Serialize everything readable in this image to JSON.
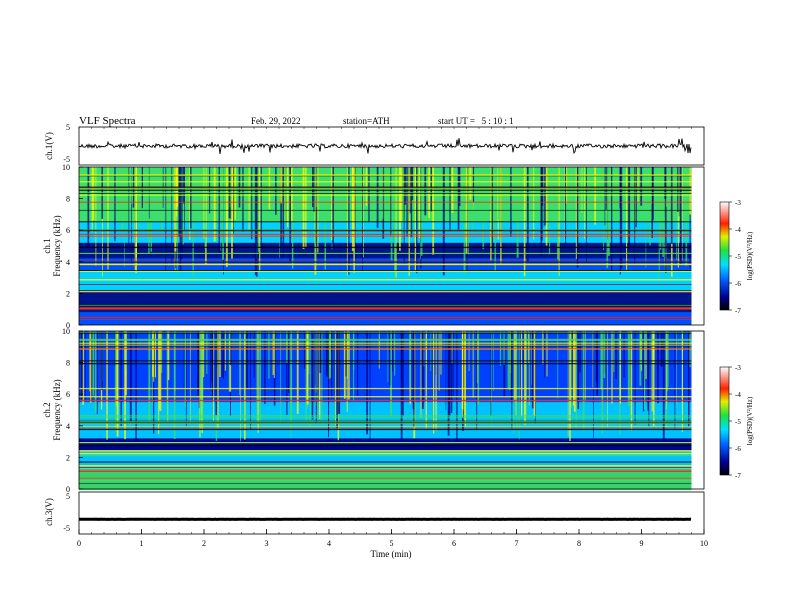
{
  "header": {
    "title": "VLF Spectra",
    "date": "Feb. 29, 2022",
    "station": "station=ATH",
    "start_ut": "start UT =   5 : 10 : 1"
  },
  "panels": {
    "ch1_wave": {
      "ylabel": "ch.1(V)",
      "ticks": [
        "5",
        "-5"
      ]
    },
    "ch1_spec": {
      "ylabel_ch": "ch.1",
      "ylabel": "Frequency (kHz)",
      "ticks": [
        "10",
        "8",
        "6",
        "4",
        "2",
        "0"
      ]
    },
    "ch2_spec": {
      "ylabel_ch": "ch.2",
      "ylabel": "Frequency (kHz)",
      "ticks": [
        "10",
        "8",
        "6",
        "4",
        "2",
        "0"
      ]
    },
    "ch3_wave": {
      "ylabel": "ch.3(V)",
      "ticks": [
        "5",
        "-5"
      ]
    }
  },
  "xaxis": {
    "label": "Time (min)",
    "ticks": [
      "0",
      "1",
      "2",
      "3",
      "4",
      "5",
      "6",
      "7",
      "8",
      "9",
      "10"
    ]
  },
  "colorbars": [
    {
      "label": "log(PSD)(V²/Hz)",
      "ticks": [
        "-3",
        "-4",
        "-5",
        "-6",
        "-7"
      ]
    },
    {
      "label": "log(PSD)(V²/Hz)",
      "ticks": [
        "-3",
        "-4",
        "-5",
        "-6",
        "-7"
      ]
    }
  ],
  "colors": {
    "low": "#000080",
    "mid_low": "#0040ff",
    "mid": "#00d0ff",
    "mid_high": "#40e060",
    "high": "#ffff00",
    "peak": "#ff2000",
    "max": "#ffffff"
  },
  "chart_data": [
    {
      "type": "line",
      "title": "VLF Spectra",
      "ylabel": "ch.1(V)",
      "xlabel": "Time (min)",
      "xlim": [
        0,
        10
      ],
      "ylim": [
        -5,
        5
      ],
      "baseline": 0
    },
    {
      "type": "heatmap",
      "ylabel": "Frequency (kHz)",
      "xlabel": "Time (min)",
      "xlim": [
        0,
        10
      ],
      "ylim": [
        0,
        10
      ],
      "data_end_min": 9.8,
      "color_range": [
        -7,
        -3
      ],
      "colorbar_label": "log(PSD)(V²/Hz)"
    },
    {
      "type": "heatmap",
      "ylabel": "Frequency (kHz)",
      "xlabel": "Time (min)",
      "xlim": [
        0,
        10
      ],
      "ylim": [
        0,
        10
      ],
      "data_end_min": 9.8,
      "color_range": [
        -7,
        -3
      ],
      "colorbar_label": "log(PSD)(V²/Hz)"
    },
    {
      "type": "line",
      "ylabel": "ch.3(V)",
      "xlabel": "Time (min)",
      "xlim": [
        0,
        10
      ],
      "ylim": [
        -5,
        5
      ],
      "baseline": -1.5
    }
  ]
}
